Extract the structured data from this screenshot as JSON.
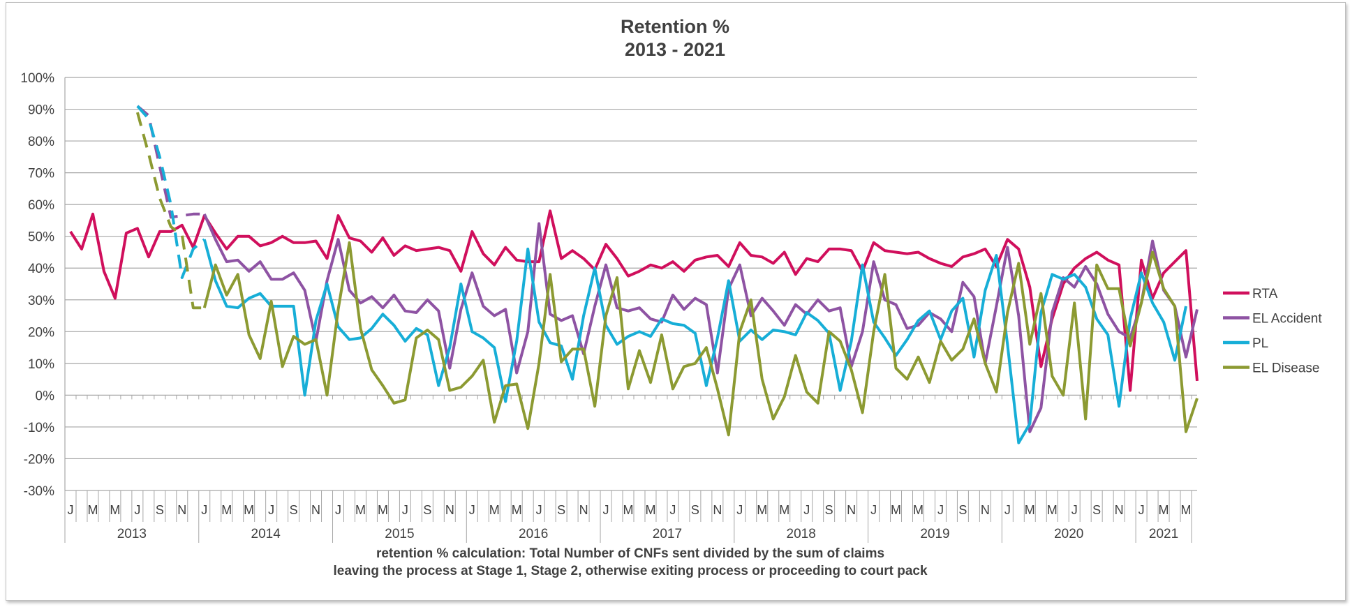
{
  "chart_data": {
    "type": "line",
    "title": "Retention %",
    "subtitle": "2013 - 2021",
    "footnote_line1": "retention % calculation:  Total Number of CNFs sent divided by the sum of claims",
    "footnote_line2": "leaving the process at Stage 1, Stage  2,  otherwise exiting process or proceeding to court pack",
    "ylim": [
      -30,
      100
    ],
    "y_ticks": [
      100,
      90,
      80,
      70,
      60,
      50,
      40,
      30,
      20,
      10,
      0,
      -10,
      -20,
      -30
    ],
    "y_tick_labels": [
      "100%",
      "90%",
      "80%",
      "70%",
      "60%",
      "50%",
      "40%",
      "30%",
      "20%",
      "10%",
      "0%",
      "-10%",
      "-20%",
      "-30%"
    ],
    "grid": true,
    "legend_position": "right",
    "x_month_labels": [
      "J",
      "M",
      "M",
      "J",
      "S",
      "N"
    ],
    "years": [
      "2013",
      "2014",
      "2015",
      "2016",
      "2017",
      "2018",
      "2019",
      "2020",
      "2021"
    ],
    "x_start": "2013-01",
    "x_end": "2021-05",
    "series": [
      {
        "name": "RTA",
        "color": "#d00f5c",
        "dashed_months": 0,
        "start": "2013-01",
        "values": [
          51.5,
          46,
          57,
          39,
          30.5,
          51,
          52.5,
          43.5,
          51.5,
          51.5,
          53.5,
          46.5,
          56.5,
          51,
          46,
          50,
          50,
          47,
          48,
          50,
          48,
          48,
          48.5,
          43,
          56.5,
          49.5,
          48.5,
          45,
          49.5,
          44,
          47,
          45.5,
          46,
          46.5,
          45.5,
          39,
          51.5,
          44.5,
          41,
          46.5,
          42.5,
          42,
          42,
          58,
          43,
          45.5,
          43,
          39.5,
          47.5,
          43,
          37.5,
          39,
          41,
          40,
          42,
          39,
          42.5,
          43.5,
          44,
          40.5,
          48,
          44,
          43.5,
          41.5,
          45,
          38,
          43,
          42,
          46,
          46,
          45.5,
          39,
          48,
          45.5,
          45,
          44.5,
          45,
          43,
          41.5,
          40.5,
          43.5,
          44.5,
          46,
          40.5,
          49,
          46,
          34,
          9,
          24,
          35,
          40,
          43,
          45,
          42.5,
          41,
          1.5,
          42.5,
          30.5,
          38.5,
          42,
          45.5,
          4.5
        ]
      },
      {
        "name": "EL Accident",
        "color": "#8e53a3",
        "dashed_months": 6,
        "start": "2013-07",
        "values": [
          91,
          88,
          72,
          56,
          56.5,
          57,
          57,
          49,
          42,
          42.5,
          39,
          42,
          36.5,
          36.5,
          38.5,
          33,
          17,
          36,
          49,
          33,
          29,
          31,
          27.5,
          31.5,
          26.5,
          26,
          30,
          26.5,
          8.5,
          27,
          38.5,
          28,
          25,
          27,
          7,
          20,
          54,
          25.5,
          23.5,
          25,
          13,
          28,
          41,
          27.5,
          26.5,
          27.5,
          24,
          23,
          31.5,
          27,
          30.5,
          28.5,
          7,
          33.5,
          41,
          25,
          30.5,
          26.5,
          22,
          28.5,
          25.5,
          30,
          26.5,
          27.5,
          9,
          20,
          42,
          30,
          28.5,
          21,
          22,
          26,
          24,
          20,
          35.5,
          31,
          10,
          28,
          46.5,
          25,
          -11.5,
          -4,
          26,
          37,
          34,
          40.5,
          35,
          25.5,
          20,
          18,
          29,
          48.5,
          33,
          28,
          12,
          27
        ]
      },
      {
        "name": "PL",
        "color": "#17aed7",
        "dashed_months": 6,
        "start": "2013-07",
        "values": [
          91,
          87,
          75,
          60,
          37,
          46,
          49,
          36,
          28,
          27.5,
          30.5,
          32,
          28,
          28,
          28,
          0,
          23.5,
          35,
          21.5,
          17.5,
          18,
          21,
          25.5,
          22,
          17,
          21,
          19,
          3,
          15,
          35,
          20,
          18,
          15,
          -2,
          17,
          46,
          23,
          16.5,
          15.5,
          5,
          25,
          40,
          22,
          16,
          18.5,
          20,
          18.5,
          24,
          22.5,
          22,
          19.5,
          3,
          18,
          36,
          17,
          20.5,
          17.5,
          20.5,
          20,
          19,
          26,
          23.5,
          19.5,
          1.5,
          17,
          41,
          23,
          18,
          12.5,
          17.5,
          23.5,
          26.5,
          17.5,
          26.5,
          30.5,
          12,
          33,
          44,
          16,
          -15,
          -9,
          26,
          38,
          36.5,
          38,
          34,
          24,
          19,
          -3.5,
          24,
          38.5,
          29,
          23,
          11,
          28
        ]
      },
      {
        "name": "EL Disease",
        "color": "#8c9a32",
        "dashed_months": 6,
        "start": "2013-07",
        "values": [
          89,
          76,
          62,
          53,
          50.5,
          27.5,
          27.5,
          41,
          31.5,
          38,
          19,
          11.5,
          29.5,
          9,
          18.5,
          16,
          17.5,
          0,
          27,
          48,
          21,
          8,
          3,
          -2.5,
          -1.5,
          18,
          20.5,
          17.5,
          1.5,
          2.5,
          6,
          11,
          -8.5,
          3,
          3.5,
          -10.5,
          10,
          38,
          10.5,
          14.5,
          14.5,
          -3.5,
          25,
          37,
          2,
          14,
          4,
          19,
          2,
          9,
          10,
          15,
          2,
          -12.5,
          20,
          30,
          5,
          -7.5,
          -0.5,
          12.5,
          1,
          -2.5,
          20,
          17,
          8,
          -5.5,
          20,
          38,
          8.5,
          5,
          12,
          4,
          17,
          11,
          14.5,
          24,
          10,
          1,
          26,
          41.5,
          16,
          32,
          6,
          0,
          29,
          -7.5,
          41,
          33.5,
          33.5,
          15.5,
          29,
          45,
          33.5,
          28,
          -11.5,
          -1
        ]
      }
    ]
  }
}
